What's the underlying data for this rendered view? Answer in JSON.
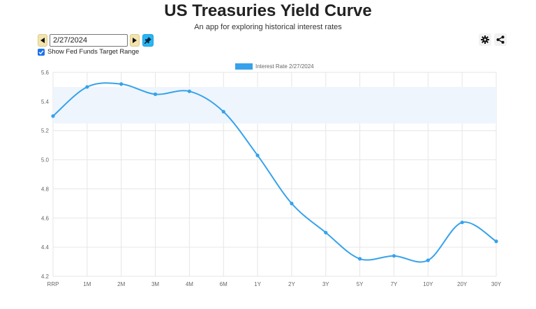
{
  "header": {
    "title": "US Treasuries Yield Curve",
    "subtitle": "An app for exploring historical interest rates"
  },
  "toolbar": {
    "date_value": "2/27/2024",
    "prev_icon": "triangle-left-icon",
    "next_icon": "triangle-right-icon",
    "pin_icon": "pin-icon",
    "settings_icon": "gear-icon",
    "share_icon": "share-icon"
  },
  "fed_toggle": {
    "label": "Show Fed Funds Target Range",
    "checked": true
  },
  "colors": {
    "line": "#36a2eb",
    "band": "#eef5fd",
    "grid": "#e6e6e6",
    "nav_button": "#f3e4ae",
    "pin_button": "#29b6f6"
  },
  "chart_data": {
    "type": "line",
    "legend": {
      "position": "top-center",
      "entries": [
        "Interest Rate 2/27/2024"
      ]
    },
    "categories": [
      "RRP",
      "1M",
      "2M",
      "3M",
      "4M",
      "6M",
      "1Y",
      "2Y",
      "3Y",
      "5Y",
      "7Y",
      "10Y",
      "20Y",
      "30Y"
    ],
    "series": [
      {
        "name": "Interest Rate 2/27/2024",
        "values": [
          5.3,
          5.5,
          5.52,
          5.45,
          5.47,
          5.33,
          5.03,
          4.7,
          4.5,
          4.32,
          4.34,
          4.31,
          4.57,
          4.44
        ]
      }
    ],
    "fed_funds_range": [
      5.25,
      5.5
    ],
    "ylim": [
      4.2,
      5.6
    ],
    "yticks": [
      "5.6",
      "5.4",
      "5.2",
      "5.0",
      "4.8",
      "4.6",
      "4.4",
      "4.2"
    ],
    "grid": true
  }
}
